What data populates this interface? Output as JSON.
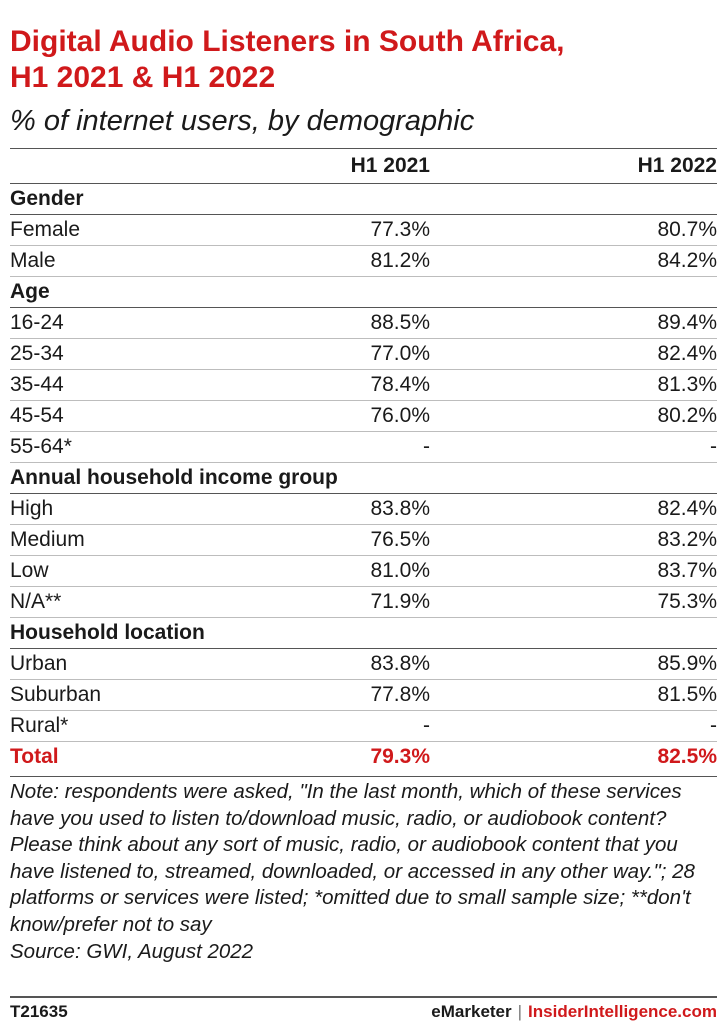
{
  "title_line1": "Digital Audio Listeners in South Africa,",
  "title_line2": "H1 2021 & H1 2022",
  "subtitle": "% of internet users, by demographic",
  "chart_data": {
    "type": "table",
    "columns": [
      "H1 2021",
      "H1 2022"
    ],
    "groups": [
      {
        "name": "Gender",
        "rows": [
          {
            "label": "Female",
            "values": [
              "77.3%",
              "80.7%"
            ]
          },
          {
            "label": "Male",
            "values": [
              "81.2%",
              "84.2%"
            ]
          }
        ]
      },
      {
        "name": "Age",
        "rows": [
          {
            "label": "16-24",
            "values": [
              "88.5%",
              "89.4%"
            ]
          },
          {
            "label": "25-34",
            "values": [
              "77.0%",
              "82.4%"
            ]
          },
          {
            "label": "35-44",
            "values": [
              "78.4%",
              "81.3%"
            ]
          },
          {
            "label": "45-54",
            "values": [
              "76.0%",
              "80.2%"
            ]
          },
          {
            "label": "55-64*",
            "values": [
              "-",
              "-"
            ]
          }
        ]
      },
      {
        "name": "Annual household income group",
        "rows": [
          {
            "label": "High",
            "values": [
              "83.8%",
              "82.4%"
            ]
          },
          {
            "label": "Medium",
            "values": [
              "76.5%",
              "83.2%"
            ]
          },
          {
            "label": "Low",
            "values": [
              "81.0%",
              "83.7%"
            ]
          },
          {
            "label": "N/A**",
            "values": [
              "71.9%",
              "75.3%"
            ]
          }
        ]
      },
      {
        "name": "Household location",
        "rows": [
          {
            "label": "Urban",
            "values": [
              "83.8%",
              "85.9%"
            ]
          },
          {
            "label": "Suburban",
            "values": [
              "77.8%",
              "81.5%"
            ]
          },
          {
            "label": "Rural*",
            "values": [
              "-",
              "-"
            ]
          }
        ]
      }
    ],
    "total": {
      "label": "Total",
      "values": [
        "79.3%",
        "82.5%"
      ]
    }
  },
  "note": "Note: respondents were asked, \"In the last month, which of these services have you used to listen to/download music, radio, or audiobook content? Please think about any sort of music, radio, or audiobook content that you have listened to, streamed, downloaded, or accessed in any other way.\"; 28 platforms or services were listed; *omitted due to small sample size; **don't know/prefer not to say",
  "source": "Source: GWI, August 2022",
  "footer": {
    "id": "T21635",
    "brand1": "eMarketer",
    "separator": "|",
    "brand2": "InsiderIntelligence.com"
  },
  "colors": {
    "accent": "#d0191b"
  }
}
